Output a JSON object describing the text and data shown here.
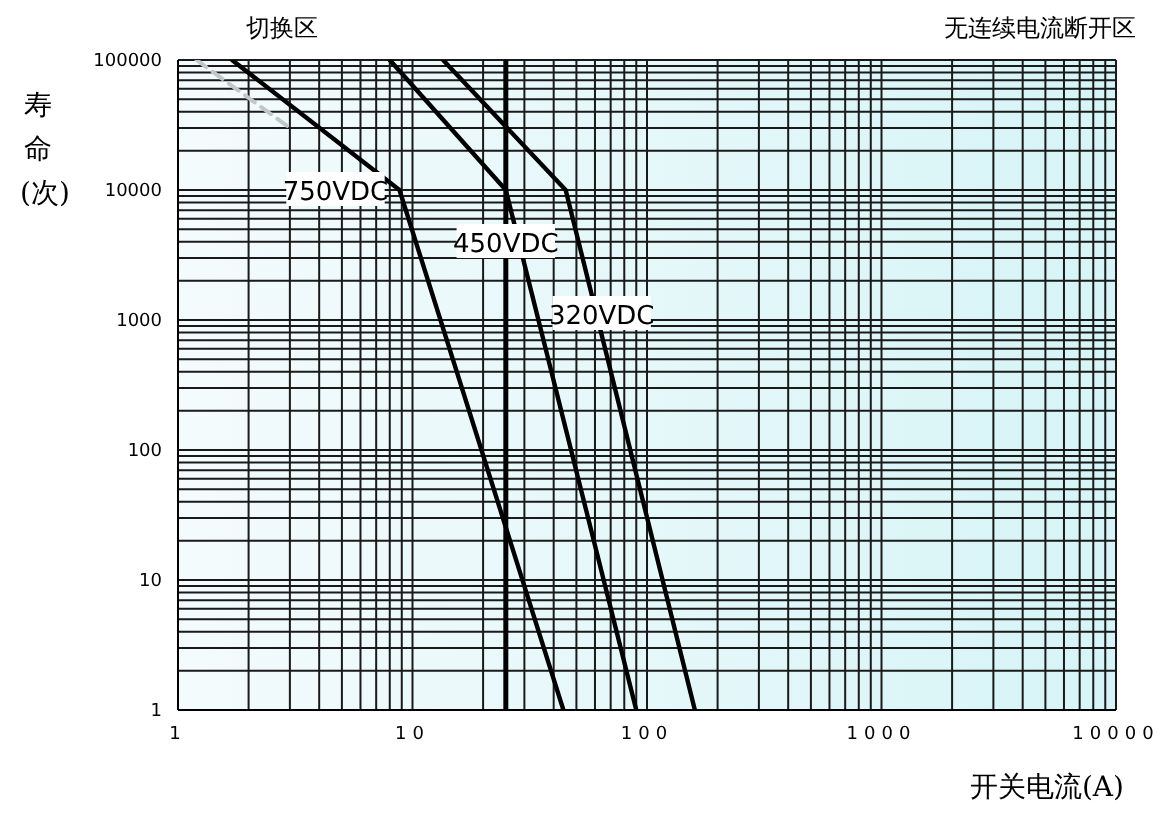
{
  "chart_data": {
    "type": "line",
    "xlabel": "开关电流(A)",
    "ylabel": "寿命(次)",
    "annotations": [
      "切换区",
      "无连续电流断开区"
    ],
    "log": "xy",
    "grid": true,
    "marker": "none",
    "xlim": [
      1,
      10000
    ],
    "xticks": [
      1,
      10,
      100,
      1000,
      10000
    ],
    "ylim": [
      1,
      100000
    ],
    "yticks": [
      1,
      10,
      100,
      1000,
      10000,
      100000
    ],
    "ref_lines": [
      {
        "axis": "x",
        "value": 25,
        "label": null,
        "color": "#000000"
      }
    ],
    "series": [
      {
        "name": "750VDC",
        "color": "#000000",
        "x": [
          1.7,
          8.8,
          44
        ],
        "values": [
          100000,
          10000,
          1
        ]
      },
      {
        "name": "450VDC",
        "color": "#000000",
        "x": [
          8,
          25,
          90
        ],
        "values": [
          100000,
          10000,
          1
        ]
      },
      {
        "name": "320VDC",
        "color": "#000000",
        "x": [
          13.5,
          45,
          160
        ],
        "values": [
          100000,
          10000,
          1
        ]
      },
      {
        "color": "#c0c8c8",
        "x": [
          1.2,
          3
        ],
        "values": [
          100000,
          30000
        ],
        "line_style": "dashed"
      }
    ]
  }
}
